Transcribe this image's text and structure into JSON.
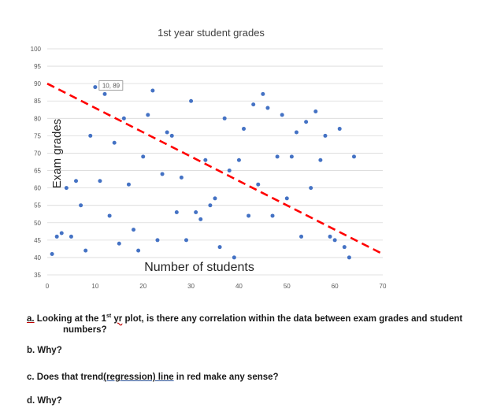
{
  "chart_data": {
    "type": "scatter",
    "title": "1st year student grades",
    "xlabel": "Number of students",
    "ylabel": "Exam grades",
    "xlim": [
      0,
      70
    ],
    "ylim": [
      35,
      100
    ],
    "x_ticks": [
      0,
      10,
      20,
      30,
      40,
      50,
      60,
      70
    ],
    "y_ticks": [
      35,
      40,
      45,
      50,
      55,
      60,
      65,
      70,
      75,
      80,
      85,
      90,
      95,
      100
    ],
    "grid": true,
    "marker_color": "#4472c4",
    "trendline": {
      "color": "#ff0000",
      "style": "dashed",
      "start": [
        0,
        90
      ],
      "end": [
        70,
        41
      ]
    },
    "annotation": {
      "text": "10, 89",
      "x": 10,
      "y": 89
    },
    "points": [
      [
        1,
        41
      ],
      [
        2,
        46
      ],
      [
        3,
        47
      ],
      [
        4,
        60
      ],
      [
        5,
        46
      ],
      [
        6,
        62
      ],
      [
        7,
        55
      ],
      [
        8,
        42
      ],
      [
        9,
        75
      ],
      [
        10,
        89
      ],
      [
        11,
        62
      ],
      [
        12,
        87
      ],
      [
        13,
        52
      ],
      [
        14,
        73
      ],
      [
        15,
        44
      ],
      [
        16,
        80
      ],
      [
        17,
        61
      ],
      [
        18,
        48
      ],
      [
        19,
        42
      ],
      [
        20,
        69
      ],
      [
        21,
        81
      ],
      [
        22,
        88
      ],
      [
        23,
        45
      ],
      [
        24,
        64
      ],
      [
        25,
        76
      ],
      [
        26,
        75
      ],
      [
        27,
        53
      ],
      [
        28,
        63
      ],
      [
        29,
        45
      ],
      [
        30,
        85
      ],
      [
        31,
        53
      ],
      [
        32,
        51
      ],
      [
        33,
        68
      ],
      [
        34,
        55
      ],
      [
        35,
        57
      ],
      [
        36,
        43
      ],
      [
        37,
        80
      ],
      [
        38,
        65
      ],
      [
        39,
        40
      ],
      [
        40,
        68
      ],
      [
        41,
        77
      ],
      [
        42,
        52
      ],
      [
        43,
        84
      ],
      [
        44,
        61
      ],
      [
        45,
        87
      ],
      [
        46,
        83
      ],
      [
        47,
        52
      ],
      [
        48,
        69
      ],
      [
        49,
        81
      ],
      [
        50,
        57
      ],
      [
        51,
        69
      ],
      [
        52,
        76
      ],
      [
        53,
        46
      ],
      [
        54,
        79
      ],
      [
        55,
        60
      ],
      [
        56,
        82
      ],
      [
        57,
        68
      ],
      [
        58,
        75
      ],
      [
        59,
        46
      ],
      [
        60,
        45
      ],
      [
        61,
        77
      ],
      [
        62,
        43
      ],
      [
        63,
        40
      ],
      [
        64,
        69
      ]
    ]
  },
  "questions": {
    "a_letter": "a.",
    "a_line1_pre": " Looking at the 1",
    "a_st": "st",
    "a_yr": "yr",
    "a_line1_post": " plot, is there any correlation within the data between exam grades and student",
    "a_line2": "numbers?",
    "b": "b.  Why?",
    "c_pre": "c.  Does that trend",
    "c_under": "(regression)  line",
    "c_post": " in red make any sense?",
    "d": "d.  Why?"
  }
}
